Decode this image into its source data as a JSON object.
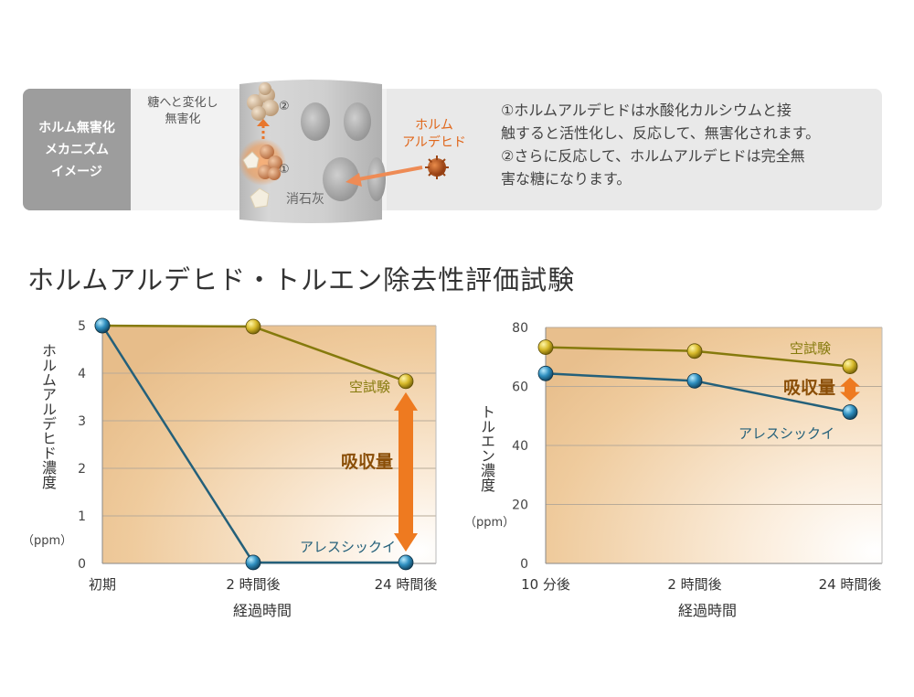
{
  "mechanism": {
    "label_lines": [
      "ホルム無害化",
      "メカニズム",
      "イメージ"
    ],
    "sugar_label_lines": [
      "糖へと変化し",
      "無害化"
    ],
    "lime_label": "消石灰",
    "formaldehyde_label_lines": [
      "ホルム",
      "アルデヒド"
    ],
    "step1": "①",
    "step2": "②",
    "description_lines": [
      "①ホルムアルデヒドは水酸化カルシウムと接",
      "触すると活性化し、反応して、無害化されます。",
      "②さらに反応して、ホルムアルデヒドは完全無",
      "害な糖になります。"
    ],
    "colors": {
      "accent": "#e8772e",
      "label_bg": "#9d9d9d",
      "panel_bg": "#e9e9e9"
    }
  },
  "title": "ホルムアルデヒド・トルエン除去性評価試験",
  "chart_data": [
    {
      "type": "line",
      "categories": [
        "初期",
        "2 時間後",
        "24 時間後"
      ],
      "yticks": [
        "0",
        "1",
        "2",
        "3",
        "4",
        "5"
      ],
      "ylim": [
        0,
        5
      ],
      "ylabel": "ホルムアルデヒド濃度",
      "yunit": "（ppm）",
      "xlabel": "経過時間",
      "series": [
        {
          "name": "空試験",
          "values": [
            5.0,
            4.98,
            3.83
          ],
          "color": "#857a0c"
        },
        {
          "name": "アレスシックイ",
          "values": [
            5.0,
            0.02,
            0.02
          ],
          "color": "#24607a"
        }
      ],
      "annotation": "吸収量"
    },
    {
      "type": "line",
      "categories": [
        "10 分後",
        "2 時間後",
        "24 時間後"
      ],
      "yticks": [
        "0",
        "20",
        "40",
        "60",
        "80"
      ],
      "ylim": [
        0,
        80
      ],
      "ylabel": "トルエン濃度",
      "yunit": "（ppm）",
      "xlabel": "経過時間",
      "series": [
        {
          "name": "空試験",
          "values": [
            73.3,
            72.0,
            66.8
          ],
          "color": "#857a0c"
        },
        {
          "name": "アレスシックイ",
          "values": [
            64.4,
            61.9,
            51.3
          ],
          "color": "#24607a"
        }
      ],
      "annotation": "吸収量"
    }
  ]
}
